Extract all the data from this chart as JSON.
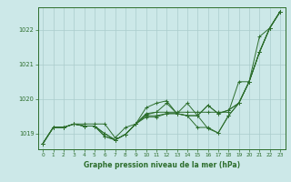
{
  "title": "Graphe pression niveau de la mer (hPa)",
  "bg_color": "#cce8e8",
  "grid_color": "#aacccc",
  "line_color": "#2d6e2d",
  "xlim": [
    -0.5,
    23.5
  ],
  "ylim": [
    1018.55,
    1022.65
  ],
  "yticks": [
    1019,
    1020,
    1021,
    1022
  ],
  "xticks": [
    0,
    1,
    2,
    3,
    4,
    5,
    6,
    7,
    8,
    9,
    10,
    11,
    12,
    13,
    14,
    15,
    16,
    17,
    18,
    19,
    20,
    21,
    22,
    23
  ],
  "lines": [
    [
      1018.72,
      1019.18,
      1019.18,
      1019.28,
      1019.28,
      1019.28,
      1019.28,
      1018.88,
      1019.18,
      1019.28,
      1019.55,
      1019.62,
      1019.62,
      1019.62,
      1019.62,
      1019.62,
      1019.62,
      1019.62,
      1019.62,
      1020.5,
      1020.5,
      1021.8,
      1022.05,
      1022.52
    ],
    [
      1018.72,
      1019.18,
      1019.18,
      1019.28,
      1019.22,
      1019.22,
      1019.0,
      1018.82,
      1018.98,
      1019.28,
      1019.75,
      1019.88,
      1019.95,
      1019.58,
      1019.88,
      1019.52,
      1019.15,
      1019.02,
      1019.52,
      1019.88,
      1020.5,
      1021.35,
      1022.05,
      1022.52
    ],
    [
      1018.72,
      1019.18,
      1019.18,
      1019.28,
      1019.22,
      1019.22,
      1018.92,
      1018.82,
      1018.98,
      1019.28,
      1019.58,
      1019.62,
      1019.88,
      1019.58,
      1019.52,
      1019.18,
      1019.18,
      1019.02,
      1019.52,
      1019.88,
      1020.5,
      1021.35,
      1022.05,
      1022.52
    ],
    [
      1018.72,
      1019.18,
      1019.18,
      1019.28,
      1019.22,
      1019.22,
      1018.92,
      1018.82,
      1018.98,
      1019.28,
      1019.48,
      1019.48,
      1019.58,
      1019.58,
      1019.52,
      1019.52,
      1019.82,
      1019.58,
      1019.68,
      1019.88,
      1020.5,
      1021.35,
      1022.05,
      1022.52
    ],
    [
      1018.72,
      1019.18,
      1019.18,
      1019.28,
      1019.22,
      1019.22,
      1019.0,
      1018.82,
      1018.98,
      1019.28,
      1019.52,
      1019.52,
      1019.58,
      1019.58,
      1019.52,
      1019.52,
      1019.82,
      1019.58,
      1019.68,
      1019.88,
      1020.5,
      1021.35,
      1022.05,
      1022.52
    ]
  ]
}
